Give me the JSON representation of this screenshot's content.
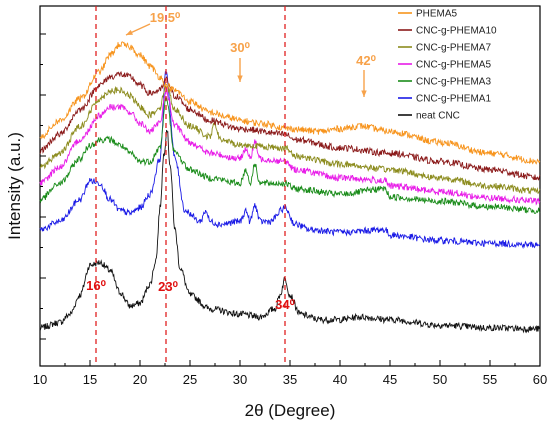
{
  "chart_data": {
    "type": "line",
    "xlabel": "2θ (Degree)",
    "ylabel": "Intensity (a.u.)",
    "xlim": [
      10,
      60
    ],
    "xticks": [
      "10",
      "15",
      "20",
      "25",
      "30",
      "35",
      "40",
      "45",
      "50",
      "55",
      "60"
    ],
    "y_tick_labels_shown": false,
    "grid": false,
    "legend_position": "top-right",
    "series": [
      {
        "name": "PHEMA5",
        "color": "#f7941d",
        "x": [
          10,
          12,
          14,
          16,
          17,
          18,
          19,
          20,
          21,
          22,
          22.6,
          23.5,
          25,
          27,
          29,
          30,
          32,
          35,
          38,
          40,
          42,
          45,
          50,
          55,
          60
        ],
        "y": [
          1.9,
          2.2,
          2.6,
          3.1,
          3.4,
          3.6,
          3.55,
          3.4,
          3.2,
          3.0,
          2.85,
          2.75,
          2.55,
          2.35,
          2.25,
          2.2,
          2.15,
          2.05,
          2.0,
          2.05,
          2.1,
          2.0,
          1.8,
          1.6,
          1.45
        ]
      },
      {
        "name": "CNC-g-PHEMA10",
        "color": "#8b1a1a",
        "x": [
          10,
          12,
          14,
          16,
          17,
          18,
          19,
          20,
          21,
          22,
          22.6,
          23.5,
          25,
          27,
          30,
          34.5,
          35.5,
          40,
          45,
          50,
          55,
          60
        ],
        "y": [
          1.65,
          1.95,
          2.4,
          2.85,
          3.0,
          3.05,
          3.0,
          2.85,
          2.7,
          2.75,
          2.95,
          2.65,
          2.4,
          2.2,
          2.05,
          1.95,
          1.85,
          1.7,
          1.6,
          1.45,
          1.3,
          1.15
        ]
      },
      {
        "name": "CNC-g-PHEMA7",
        "color": "#8c8c1e",
        "x": [
          10,
          12,
          14,
          16,
          17,
          18,
          19,
          20,
          21,
          22,
          22.6,
          23.5,
          25,
          27,
          27.5,
          28,
          30,
          34.5,
          35.5,
          40,
          45,
          50,
          55,
          60
        ],
        "y": [
          1.35,
          1.6,
          2.1,
          2.6,
          2.75,
          2.75,
          2.65,
          2.45,
          2.3,
          2.45,
          2.85,
          2.4,
          2.1,
          1.9,
          2.15,
          1.85,
          1.75,
          1.7,
          1.55,
          1.4,
          1.3,
          1.15,
          1.0,
          0.9
        ]
      },
      {
        "name": "CNC-g-PHEMA5",
        "color": "#e81ce8",
        "x": [
          10,
          12,
          14,
          16,
          17,
          18,
          19,
          20,
          21,
          22,
          22.6,
          23.5,
          25,
          27,
          30,
          30.6,
          31,
          31.5,
          32,
          34.5,
          35.5,
          40,
          44.5,
          45,
          50,
          55,
          60
        ],
        "y": [
          1.05,
          1.35,
          1.85,
          2.3,
          2.45,
          2.45,
          2.35,
          2.15,
          2.0,
          2.15,
          2.75,
          2.1,
          1.8,
          1.6,
          1.5,
          1.7,
          1.5,
          1.8,
          1.5,
          1.45,
          1.3,
          1.15,
          1.1,
          1.0,
          0.9,
          0.78,
          0.72
        ]
      },
      {
        "name": "CNC-g-PHEMA3",
        "color": "#1a8c1a",
        "x": [
          10,
          12,
          14,
          15,
          16,
          17,
          18,
          19,
          20,
          21,
          22,
          22.6,
          23.5,
          25,
          27,
          30,
          30.6,
          31,
          31.5,
          32,
          34.5,
          35.5,
          40,
          44.5,
          45,
          50,
          55,
          60
        ],
        "y": [
          0.75,
          1.05,
          1.5,
          1.75,
          1.85,
          1.85,
          1.75,
          1.6,
          1.45,
          1.45,
          1.7,
          2.6,
          1.6,
          1.3,
          1.15,
          1.05,
          1.3,
          1.05,
          1.4,
          1.05,
          1.05,
          0.95,
          0.85,
          0.95,
          0.8,
          0.72,
          0.62,
          0.55
        ]
      },
      {
        "name": "CNC-g-PHEMA1",
        "color": "#1a1ae6",
        "x": [
          10,
          12,
          14,
          15,
          16,
          17,
          18,
          19,
          20,
          21,
          22,
          22.6,
          23.5,
          24.5,
          26,
          26.6,
          27,
          28,
          30,
          30.6,
          31,
          31.5,
          32,
          33,
          34.5,
          35.5,
          37,
          40,
          44.5,
          45,
          50,
          55,
          60
        ],
        "y": [
          0.2,
          0.35,
          0.75,
          1.1,
          1.05,
          0.75,
          0.55,
          0.5,
          0.6,
          0.85,
          1.5,
          3.1,
          1.5,
          0.55,
          0.35,
          0.55,
          0.35,
          0.3,
          0.35,
          0.55,
          0.35,
          0.65,
          0.35,
          0.35,
          0.6,
          0.3,
          0.2,
          0.15,
          0.2,
          0.1,
          0.0,
          -0.05,
          -0.08
        ]
      },
      {
        "name": "neat CNC",
        "color": "#111111",
        "x": [
          10,
          12,
          13,
          14,
          15,
          16,
          17,
          18,
          19,
          20,
          21,
          21.6,
          22,
          22.4,
          22.7,
          23,
          23.5,
          24,
          25,
          27,
          30,
          32,
          33.5,
          34,
          34.5,
          35,
          36,
          38,
          40,
          42,
          45,
          50,
          55,
          60
        ],
        "y": [
          -1.6,
          -1.5,
          -1.35,
          -1.0,
          -0.45,
          -0.4,
          -0.55,
          -0.95,
          -1.2,
          -1.15,
          -0.8,
          -0.35,
          0.6,
          1.6,
          2.05,
          1.4,
          0.2,
          -0.5,
          -1.0,
          -1.25,
          -1.35,
          -1.4,
          -1.25,
          -1.0,
          -0.7,
          -1.0,
          -1.35,
          -1.45,
          -1.45,
          -1.4,
          -1.45,
          -1.55,
          -1.6,
          -1.62
        ]
      }
    ],
    "annotations": [
      {
        "text": "19.5⁰",
        "x": 19.5,
        "color": "#f7a24a"
      },
      {
        "text": "30⁰",
        "x": 30,
        "color": "#f7a24a"
      },
      {
        "text": "42⁰",
        "x": 42,
        "color": "#f7a24a"
      },
      {
        "text": "16⁰",
        "x": 15.6,
        "color": "#e01010"
      },
      {
        "text": "23⁰",
        "x": 22.6,
        "color": "#e01010"
      },
      {
        "text": "34⁰",
        "x": 34.5,
        "color": "#e01010"
      }
    ],
    "reference_lines_x": [
      15.6,
      22.6,
      34.5
    ]
  }
}
